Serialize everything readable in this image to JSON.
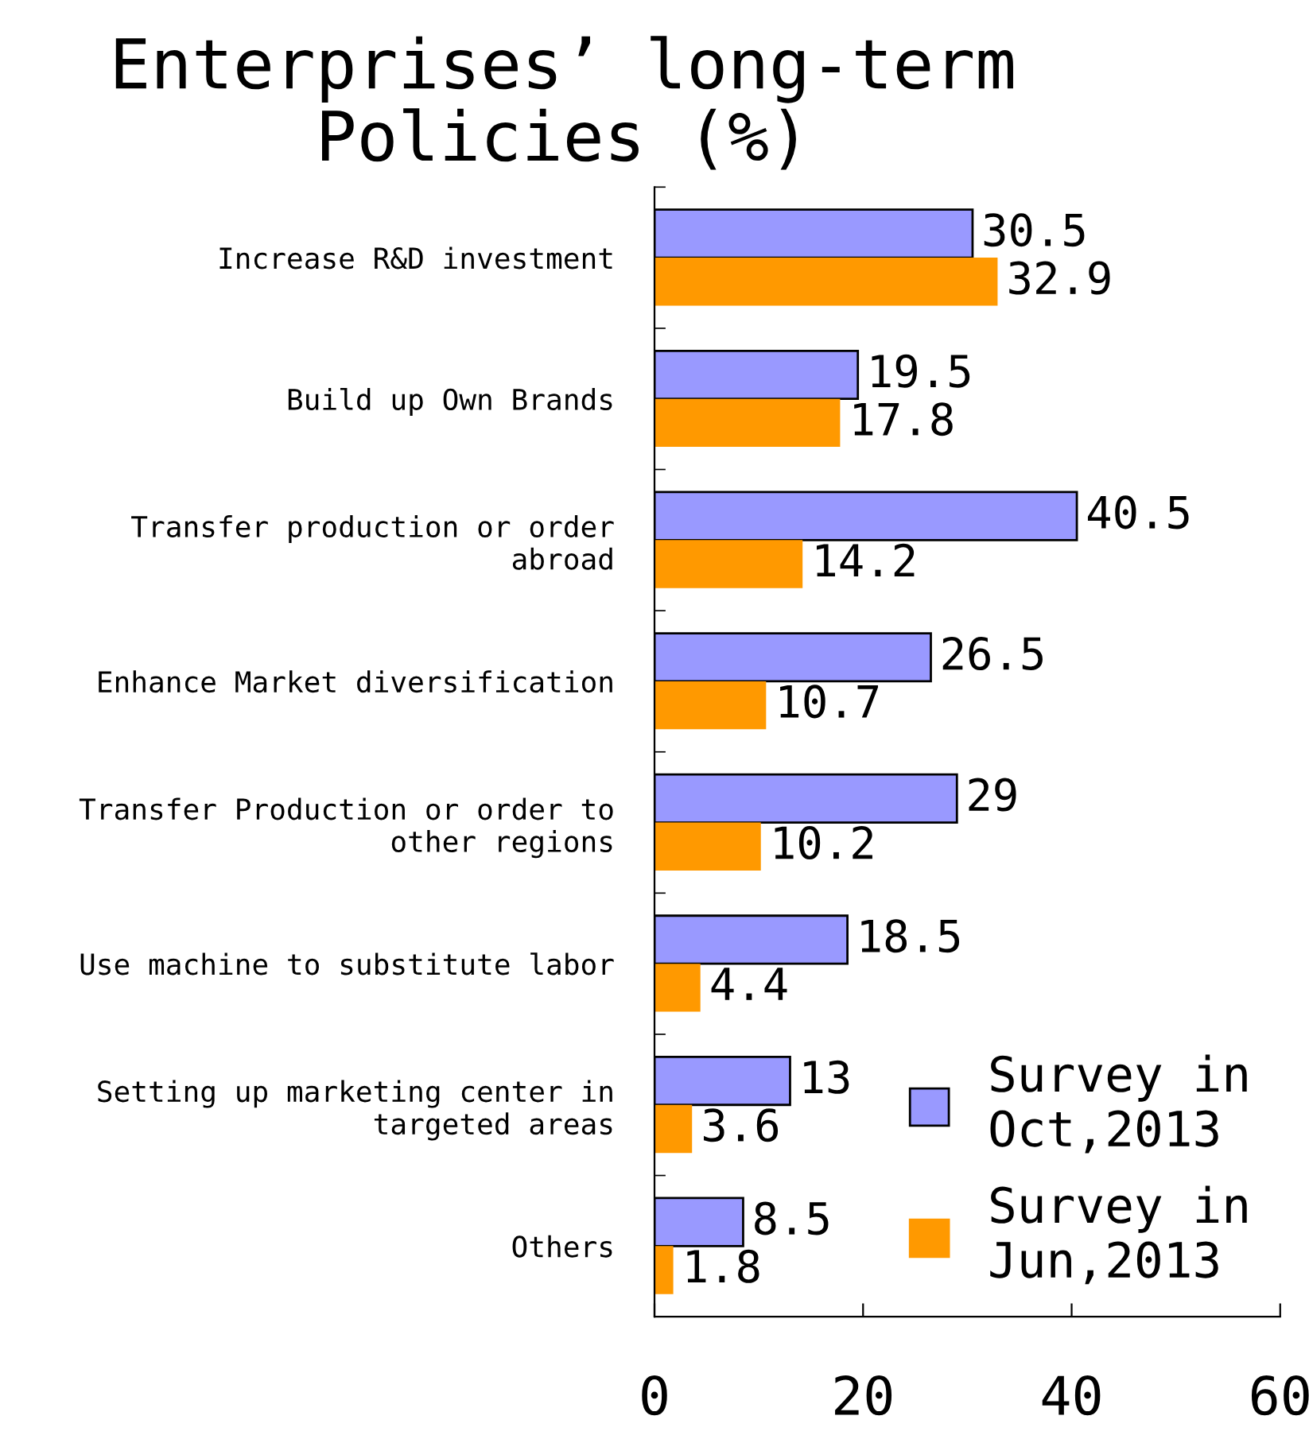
{
  "chart_data": {
    "type": "bar",
    "orientation": "horizontal",
    "title": "Enterprises’ long-term\nPolicies (%)",
    "categories": [
      "Increase R&D investment",
      "Build up Own Brands",
      "Transfer production or order\nabroad",
      "Enhance Market diversification",
      "Transfer Production or order to\nother regions",
      "Use machine to substitute labor",
      "Setting up marketing center in\ntargeted areas",
      "Others"
    ],
    "series": [
      {
        "name": "Survey in\nOct,2013",
        "color": "#9999ff",
        "values": [
          30.5,
          19.5,
          40.5,
          26.5,
          29,
          18.5,
          13,
          8.5
        ]
      },
      {
        "name": "Survey in\nJun,2013",
        "color": "#ff9900",
        "values": [
          32.9,
          17.8,
          14.2,
          10.7,
          10.2,
          4.4,
          3.6,
          1.8
        ]
      }
    ],
    "xlim": [
      0,
      60
    ],
    "xticks": [
      0,
      20,
      40,
      60
    ],
    "data_labels": true,
    "legend": "bottom right",
    "grid": false
  }
}
